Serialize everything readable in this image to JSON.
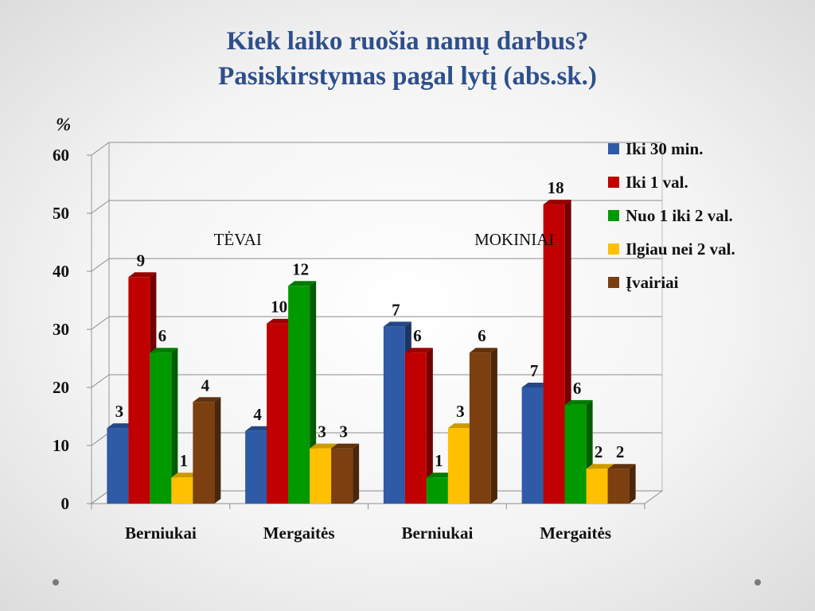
{
  "title_line1": "Kiek laiko ruošia namų darbus?",
  "title_line2": "Pasiskirstymas pagal lytį (abs.sk.)",
  "chart_data": {
    "type": "bar",
    "ylabel": "%",
    "ylim": [
      0,
      60
    ],
    "yticks": [
      0,
      10,
      20,
      30,
      40,
      50,
      60
    ],
    "grid": true,
    "legend_position": "right",
    "categories": [
      "Berniukai",
      "Mergaitės",
      "Berniukai",
      "Mergaitės"
    ],
    "group_labels": [
      {
        "text": "TĖVAI",
        "categories": [
          0,
          1
        ]
      },
      {
        "text": "MOKINIAI",
        "categories": [
          2,
          3
        ]
      }
    ],
    "series": [
      {
        "name": "Iki 30 min.",
        "color": "#2e5aa6",
        "values": [
          13,
          12.5,
          30.5,
          20
        ],
        "labels": [
          "3",
          "4",
          "7",
          "7"
        ]
      },
      {
        "name": "Iki 1 val.",
        "color": "#c00000",
        "values": [
          39,
          31,
          26,
          51.5
        ],
        "labels": [
          "9",
          "10",
          "6",
          "18"
        ]
      },
      {
        "name": "Nuo 1 iki 2 val.",
        "color": "#009a00",
        "values": [
          26,
          37.5,
          4.5,
          17
        ],
        "labels": [
          "6",
          "12",
          "1",
          "6"
        ]
      },
      {
        "name": "Ilgiau nei 2 val.",
        "color": "#ffc000",
        "values": [
          4.5,
          9.5,
          13,
          6
        ],
        "labels": [
          "1",
          "3",
          "3",
          "2"
        ]
      },
      {
        "name": "Įvairiai",
        "color": "#7b3f10",
        "values": [
          17.5,
          9.5,
          26,
          6
        ],
        "labels": [
          "4",
          "3",
          "6",
          "2"
        ]
      }
    ]
  }
}
